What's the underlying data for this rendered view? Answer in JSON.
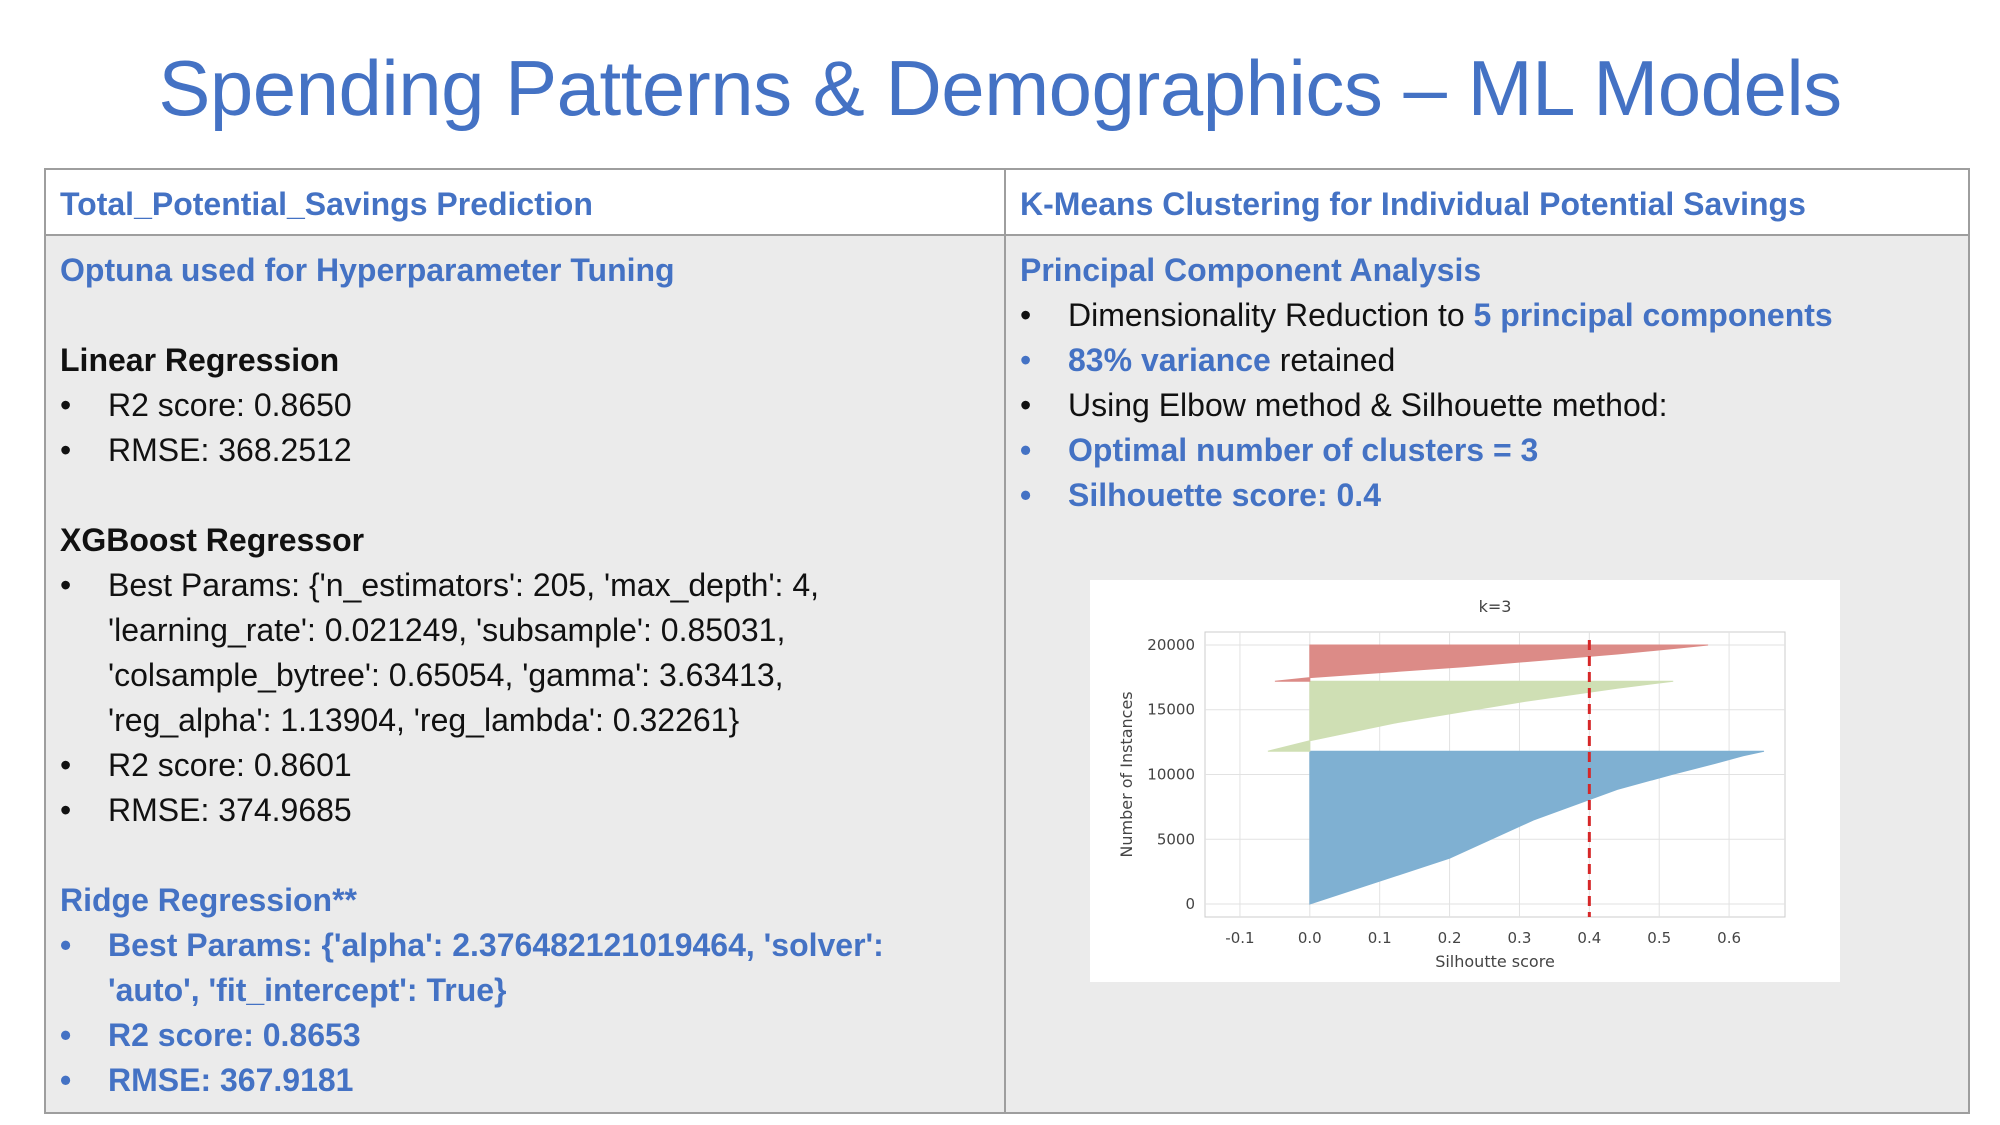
{
  "title": "Spending Patterns & Demographics – ML Models",
  "left": {
    "header": "Total_Potential_Savings Prediction",
    "optuna": "Optuna used for Hyperparameter Tuning",
    "linear": {
      "heading": "Linear Regression",
      "r2": "R2 score: 0.8650",
      "rmse": "RMSE: 368.2512"
    },
    "xgb": {
      "heading": "XGBoost Regressor",
      "params_1": "Best Params: {'n_estimators': 205, 'max_depth': 4,",
      "params_2": "'learning_rate': 0.021249, 'subsample': 0.85031,",
      "params_3": "'colsample_bytree': 0.65054, 'gamma': 3.63413,",
      "params_4": "'reg_alpha': 1.13904, 'reg_lambda': 0.32261}",
      "r2": "R2 score: 0.8601",
      "rmse": "RMSE: 374.9685"
    },
    "ridge": {
      "heading": "Ridge Regression**",
      "params_1": "Best Params: {'alpha': 2.376482121019464, 'solver':",
      "params_2": "'auto', 'fit_intercept': True}",
      "r2": "R2 score: 0.8653",
      "rmse": "RMSE: 367.9181"
    }
  },
  "right": {
    "header": "K-Means Clustering for Individual Potential Savings",
    "pca_heading": "Principal Component Analysis",
    "dim_prefix": "Dimensionality Reduction to ",
    "dim_highlight": "5 principal components",
    "variance_highlight": "83% variance",
    "variance_suffix": " retained",
    "methods": "Using Elbow method & Silhouette method:",
    "optimal": "Optimal number of clusters = 3",
    "silhouette": "Silhouette score: 0.4"
  },
  "bullet_char": "•",
  "chart_data": {
    "type": "area",
    "title": "k=3",
    "xlabel": "Silhoutte score",
    "ylabel": "Number of Instances",
    "xlim": [
      -0.15,
      0.68
    ],
    "ylim": [
      -1000,
      21000
    ],
    "xticks": [
      -0.1,
      0.0,
      0.1,
      0.2,
      0.3,
      0.4,
      0.5,
      0.6
    ],
    "xtick_labels": [
      "-0.1",
      "0.0",
      "0.1",
      "0.2",
      "0.3",
      "0.4",
      "0.5",
      "0.6"
    ],
    "yticks": [
      0,
      5000,
      10000,
      15000,
      20000
    ],
    "ytick_labels": [
      "0",
      "5000",
      "10000",
      "15000",
      "20000"
    ],
    "grid": true,
    "average_silhouette": 0.4,
    "series": [
      {
        "color": "#7fb0d2",
        "y_start": 0,
        "y_end": 11800,
        "profile": [
          [
            0,
            0.0
          ],
          [
            0.3,
            0.2
          ],
          [
            0.55,
            0.32
          ],
          [
            0.75,
            0.44
          ],
          [
            0.85,
            0.52
          ],
          [
            0.92,
            0.58
          ],
          [
            0.97,
            0.62
          ],
          [
            1.0,
            0.65
          ]
        ]
      },
      {
        "color": "#cfdfb4",
        "y_start": 11800,
        "y_end": 17200,
        "profile": [
          [
            0,
            -0.06
          ],
          [
            0.15,
            0.0
          ],
          [
            0.4,
            0.12
          ],
          [
            0.7,
            0.3
          ],
          [
            0.9,
            0.44
          ],
          [
            1.0,
            0.52
          ]
        ]
      },
      {
        "color": "#dc8b87",
        "y_start": 17200,
        "y_end": 20000,
        "profile": [
          [
            0,
            -0.05
          ],
          [
            0.1,
            0.0
          ],
          [
            0.4,
            0.22
          ],
          [
            0.75,
            0.44
          ],
          [
            0.92,
            0.53
          ],
          [
            1.0,
            0.57
          ]
        ]
      }
    ]
  }
}
